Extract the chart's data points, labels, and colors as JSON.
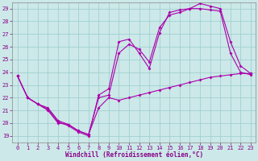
{
  "xlabel": "Windchill (Refroidissement éolien,°C)",
  "bg_color": "#cce8e8",
  "line_color": "#aa00aa",
  "grid_color": "#99cccc",
  "xlim": [
    -0.5,
    23.5
  ],
  "ylim": [
    18.5,
    29.5
  ],
  "yticks": [
    19,
    20,
    21,
    22,
    23,
    24,
    25,
    26,
    27,
    28,
    29
  ],
  "xticks": [
    0,
    1,
    2,
    3,
    4,
    5,
    6,
    7,
    8,
    9,
    10,
    11,
    12,
    13,
    14,
    15,
    16,
    17,
    18,
    19,
    20,
    21,
    22,
    23
  ],
  "line1_x": [
    0,
    1,
    2,
    3,
    4,
    5,
    6,
    7,
    8,
    9,
    10,
    11,
    12,
    13,
    14,
    15,
    16,
    17,
    18,
    19,
    20,
    21,
    22,
    23
  ],
  "line1_y": [
    23.7,
    22.0,
    21.5,
    21.1,
    20.1,
    19.8,
    19.3,
    19.0,
    22.2,
    22.7,
    26.4,
    26.6,
    25.5,
    24.3,
    27.1,
    28.7,
    28.9,
    29.0,
    29.4,
    29.2,
    29.0,
    26.4,
    24.5,
    23.9
  ],
  "line2_x": [
    0,
    1,
    2,
    3,
    4,
    5,
    6,
    7,
    8,
    9,
    10,
    11,
    12,
    13,
    14,
    15,
    16,
    17,
    18,
    19,
    20,
    21,
    22,
    23
  ],
  "line2_y": [
    23.7,
    22.0,
    21.5,
    21.2,
    20.2,
    19.9,
    19.4,
    19.1,
    22.0,
    22.2,
    25.5,
    26.2,
    25.8,
    24.8,
    27.5,
    28.5,
    28.7,
    29.0,
    29.0,
    28.9,
    28.8,
    25.5,
    24.0,
    23.8
  ],
  "line3_x": [
    0,
    1,
    2,
    3,
    4,
    5,
    6,
    7,
    8,
    9,
    10,
    11,
    12,
    13,
    14,
    15,
    16,
    17,
    18,
    19,
    20,
    21,
    22,
    23
  ],
  "line3_y": [
    23.7,
    22.0,
    21.5,
    21.0,
    20.0,
    19.9,
    19.4,
    19.1,
    21.2,
    22.0,
    21.8,
    22.0,
    22.2,
    22.4,
    22.6,
    22.8,
    23.0,
    23.2,
    23.4,
    23.6,
    23.7,
    23.8,
    23.9,
    23.9
  ],
  "tick_fontsize": 5.0,
  "xlabel_fontsize": 5.5,
  "tick_color": "#880088",
  "spine_color": "#888888"
}
